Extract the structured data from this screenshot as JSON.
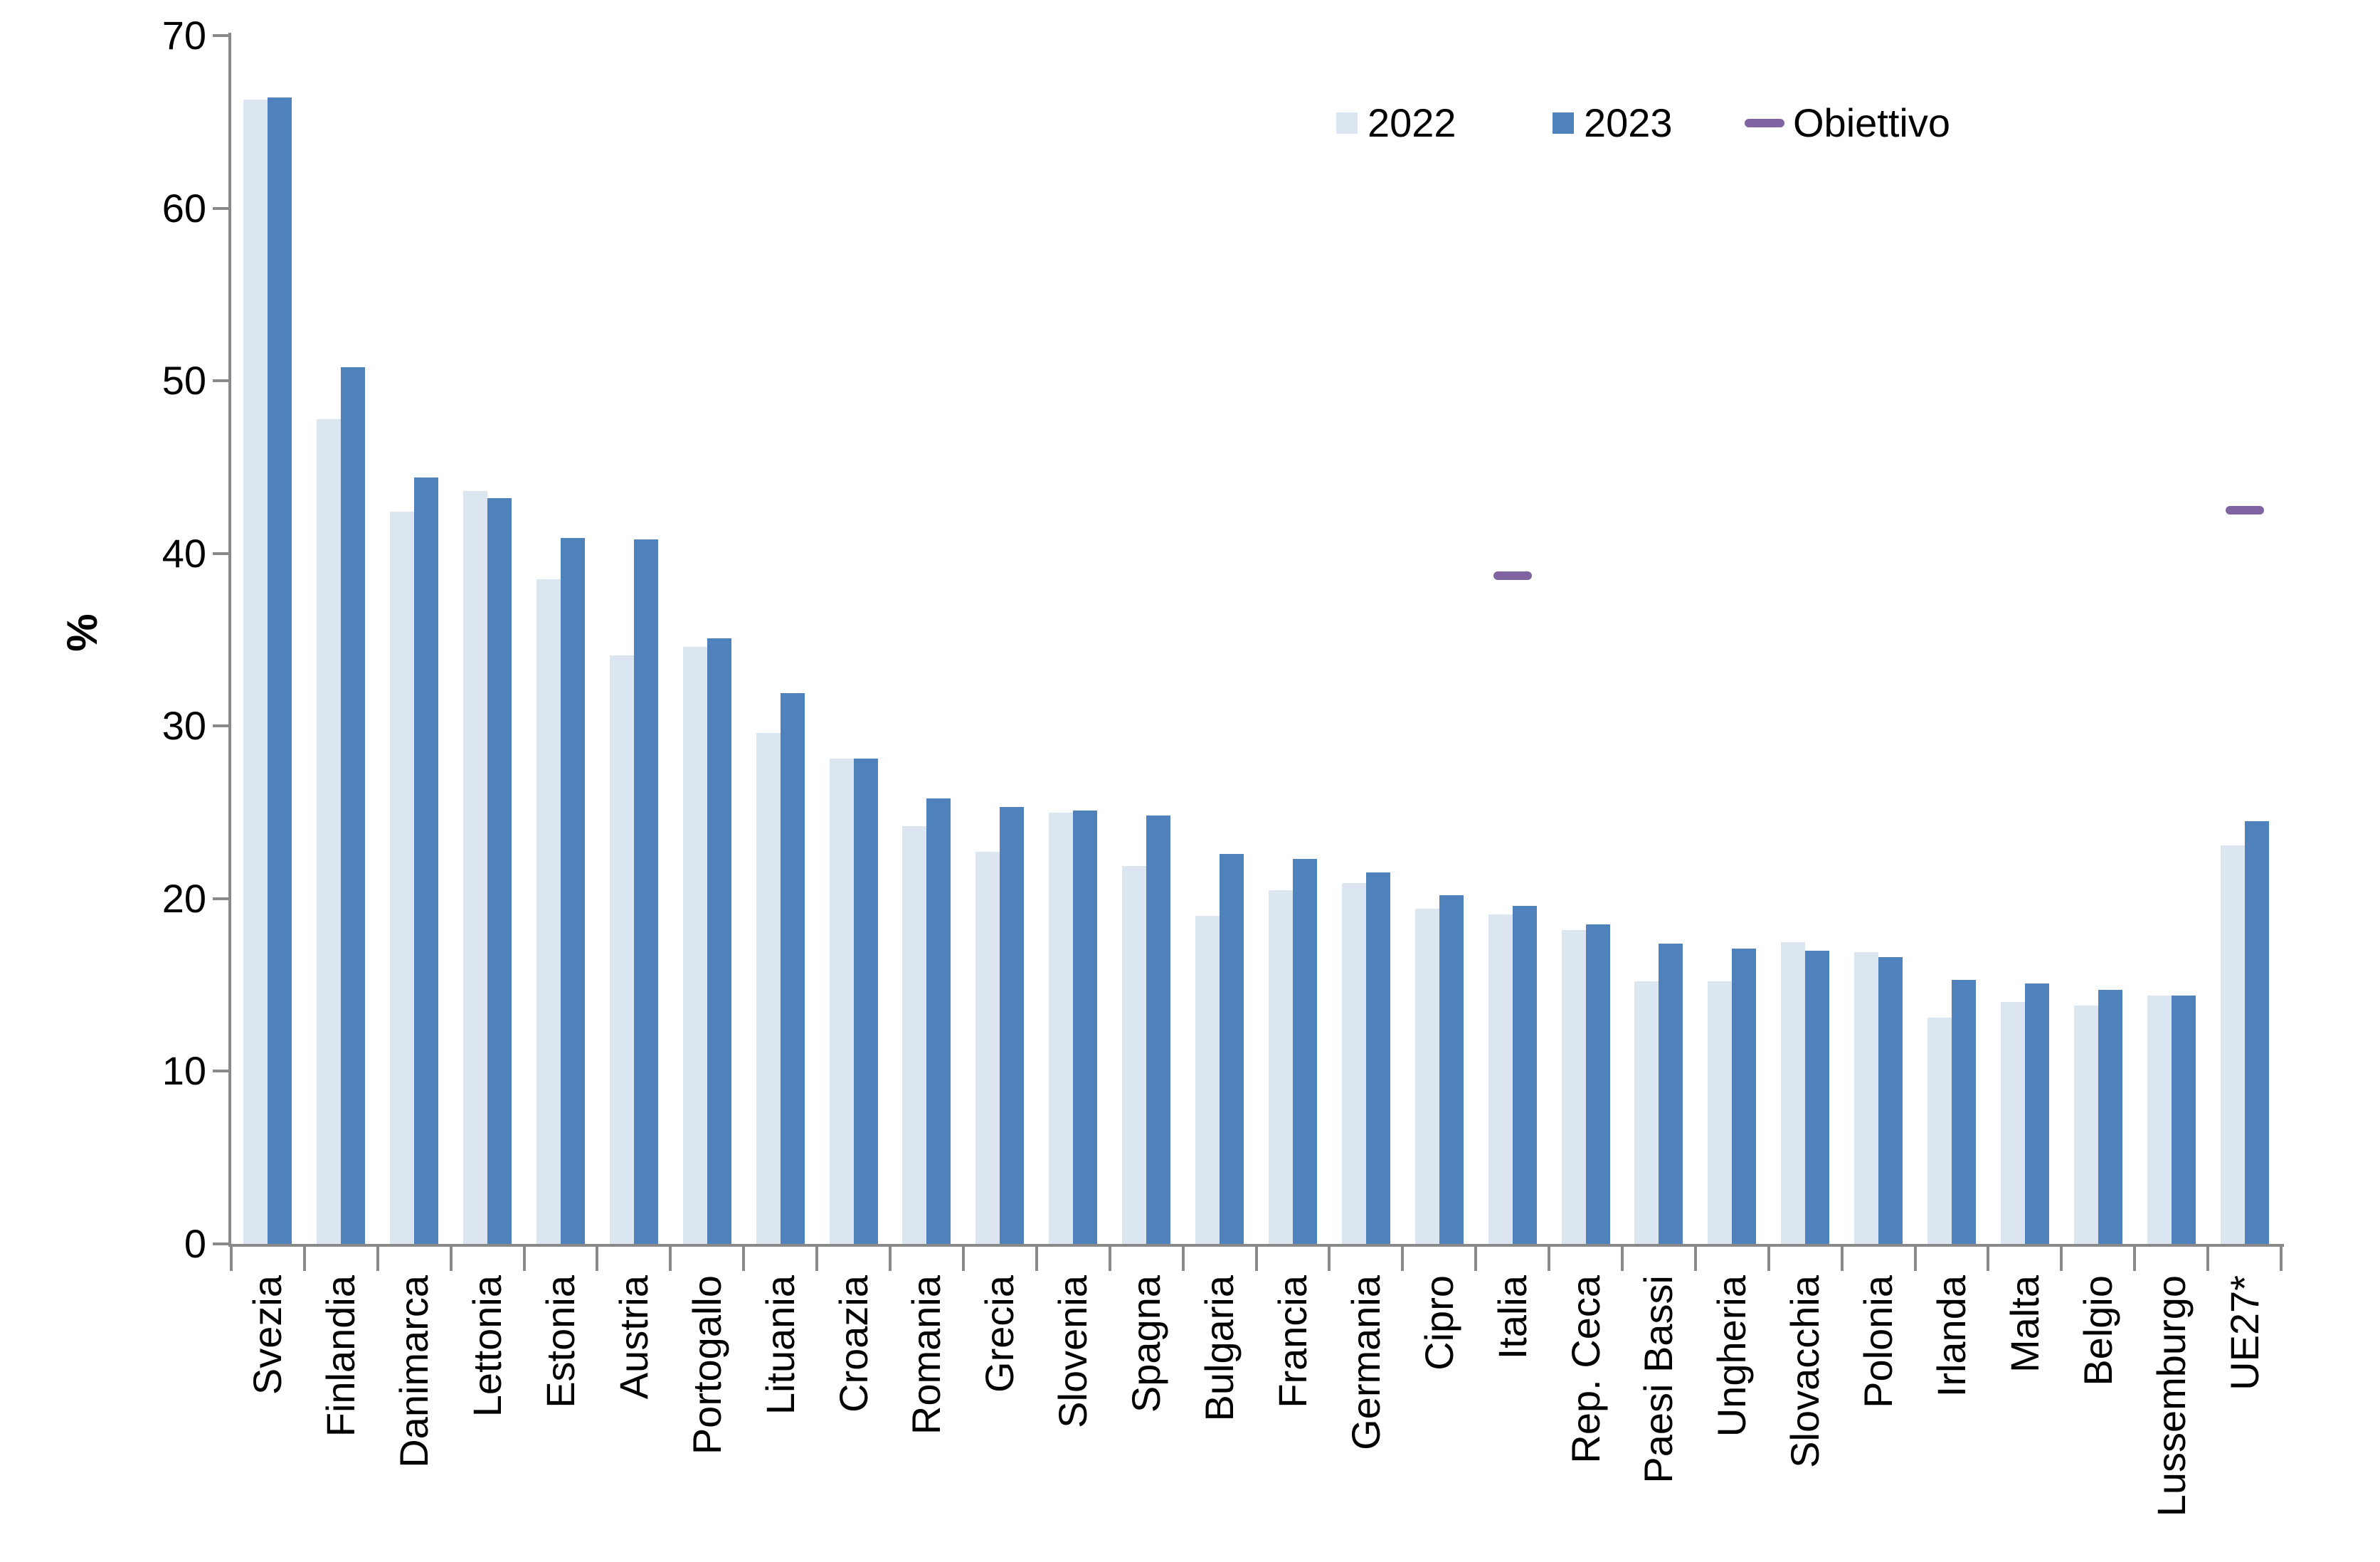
{
  "chart_data": {
    "type": "bar",
    "title": "",
    "xlabel": "",
    "ylabel": "%",
    "ylim": [
      0,
      70
    ],
    "yticks": [
      0,
      10,
      20,
      30,
      40,
      50,
      60,
      70
    ],
    "grid": false,
    "legend_position": "top-right",
    "legend": [
      "2022",
      "2023",
      "Obiettivo"
    ],
    "categories": [
      "Svezia",
      "Finlandia",
      "Danimarca",
      "Lettonia",
      "Estonia",
      "Austria",
      "Portogallo",
      "Lituania",
      "Croazia",
      "Romania",
      "Grecia",
      "Slovenia",
      "Spagna",
      "Bulgaria",
      "Francia",
      "Germania",
      "Cipro",
      "Italia",
      "Rep. Ceca",
      "Paesi Bassi",
      "Ungheria",
      "Slovacchia",
      "Polonia",
      "Irlanda",
      "Malta",
      "Belgio",
      "Lussemburgo",
      "UE27*"
    ],
    "series": [
      {
        "name": "2022",
        "color": "#dce6f1",
        "values": [
          66.3,
          47.8,
          42.4,
          43.6,
          38.5,
          34.1,
          34.6,
          29.6,
          28.1,
          24.2,
          22.7,
          25.0,
          21.9,
          19.0,
          20.5,
          20.9,
          19.4,
          19.1,
          18.2,
          15.2,
          15.2,
          17.5,
          16.9,
          13.1,
          14.0,
          13.8,
          14.4,
          23.1
        ]
      },
      {
        "name": "2023",
        "color": "#4f81bd",
        "values": [
          66.4,
          50.8,
          44.4,
          43.2,
          40.9,
          40.8,
          35.1,
          31.9,
          28.1,
          25.8,
          25.3,
          25.1,
          24.8,
          22.6,
          22.3,
          21.5,
          20.2,
          19.6,
          18.5,
          17.4,
          17.1,
          17.0,
          16.6,
          15.3,
          15.1,
          14.7,
          14.4,
          24.5
        ]
      }
    ],
    "targets": {
      "name": "Obiettivo",
      "color": "#8064a2",
      "points": [
        {
          "category": "Italia",
          "value": 38.7
        },
        {
          "category": "UE27*",
          "value": 42.5
        }
      ]
    }
  },
  "colors": {
    "background": "#ffffff",
    "axis": "#898989",
    "text": "#000000",
    "bar_2022": "#dce6f1",
    "bar_2023": "#4f81bd",
    "target": "#8064a2"
  }
}
